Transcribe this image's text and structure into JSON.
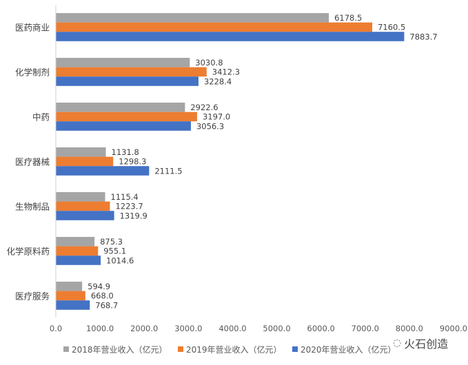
{
  "chart_data": {
    "type": "bar",
    "orientation": "horizontal",
    "title": "",
    "xlabel": "",
    "ylabel": "",
    "xlim": [
      0,
      9000
    ],
    "x_ticks": [
      "0.0",
      "1000.0",
      "2000.0",
      "3000.0",
      "4000.0",
      "5000.0",
      "6000.0",
      "7000.0",
      "8000.0",
      "9000.0"
    ],
    "grid": false,
    "legend_position": "bottom",
    "categories": [
      "医药商业",
      "化学制剂",
      "中药",
      "医疗器械",
      "生物制品",
      "化学原料药",
      "医疗服务"
    ],
    "series": [
      {
        "name": "2018年营业收入（亿元）",
        "color": "#a5a5a5",
        "values": [
          6178.5,
          3030.8,
          2922.6,
          1131.8,
          1115.4,
          875.3,
          594.9
        ],
        "labels": [
          "6178.5",
          "3030.8",
          "2922.6",
          "1131.8",
          "1115.4",
          "875.3",
          "594.9"
        ]
      },
      {
        "name": "2019年营业收入（亿元）",
        "color": "#ed7d31",
        "values": [
          7160.5,
          3412.3,
          3197.0,
          1298.3,
          1223.7,
          955.1,
          668.0
        ],
        "labels": [
          "7160.5",
          "3412.3",
          "3197.0",
          "1298.3",
          "1223.7",
          "955.1",
          "668.0"
        ]
      },
      {
        "name": "2020年营业收入（亿元）",
        "color": "#4472c4",
        "values": [
          7883.7,
          3228.4,
          3056.3,
          2111.5,
          1319.9,
          1014.6,
          768.7
        ],
        "labels": [
          "7883.7",
          "3228.4",
          "3056.3",
          "2111.5",
          "1319.9",
          "1014.6",
          "768.7"
        ]
      }
    ]
  },
  "watermark": {
    "text": "火石创造",
    "icon": "wechat-icon"
  }
}
